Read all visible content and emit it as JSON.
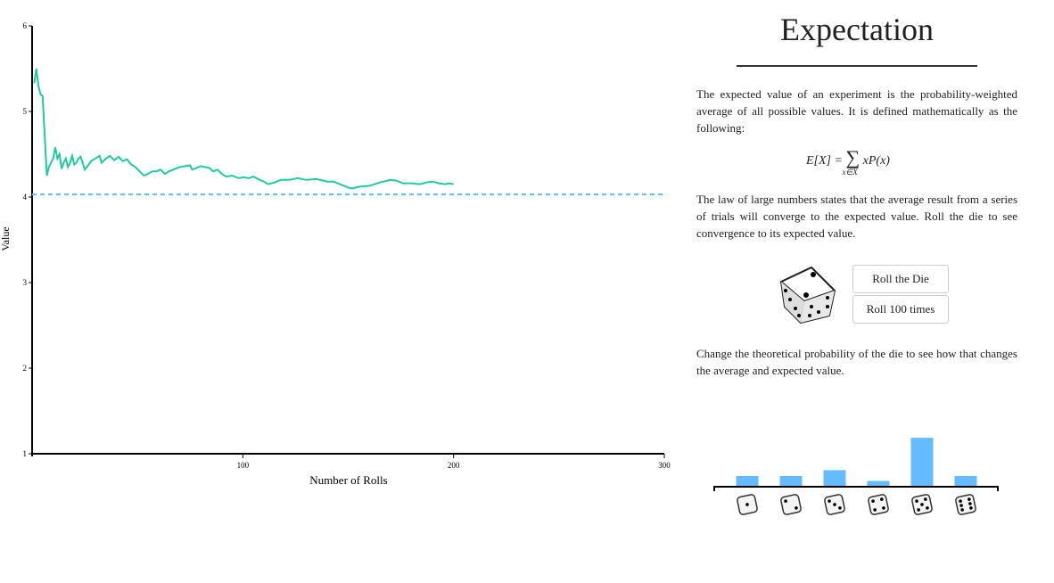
{
  "chart_data": [
    {
      "type": "line",
      "x_label": "Number of Rolls",
      "y_label": "Value",
      "xlim": [
        0,
        300
      ],
      "xticks": [
        100,
        200,
        300
      ],
      "ylim": [
        1,
        6
      ],
      "yticks": [
        1,
        2,
        3,
        4,
        5,
        6
      ],
      "reference_value": 4.03,
      "reference_color": "#5bc0f8",
      "series": [
        {
          "color": "#1ecb9e",
          "x": [
            1,
            2,
            3,
            4,
            5,
            6,
            7,
            8,
            9,
            10,
            11,
            12,
            13,
            14,
            15,
            16,
            17,
            18,
            19,
            20,
            21,
            22,
            23,
            24,
            25,
            26,
            28,
            30,
            32,
            33,
            35,
            37,
            39,
            41,
            43,
            45,
            47,
            49,
            51,
            53,
            55,
            57,
            59,
            61,
            63,
            65,
            70,
            75,
            76,
            80,
            84,
            86,
            88,
            90,
            92,
            95,
            98,
            100,
            103,
            105,
            108,
            110,
            112,
            115,
            118,
            122,
            126,
            130,
            135,
            140,
            143,
            146,
            150,
            152,
            155,
            160,
            165,
            170,
            173,
            176,
            180,
            184,
            187,
            190,
            193,
            196,
            198,
            200
          ],
          "values": [
            5.33,
            5.5,
            5.3,
            5.2,
            5.18,
            4.7,
            4.25,
            4.35,
            4.4,
            4.45,
            4.58,
            4.45,
            4.5,
            4.33,
            4.4,
            4.45,
            4.35,
            4.4,
            4.48,
            4.38,
            4.4,
            4.45,
            4.47,
            4.4,
            4.32,
            4.35,
            4.42,
            4.45,
            4.48,
            4.4,
            4.45,
            4.48,
            4.43,
            4.47,
            4.42,
            4.44,
            4.38,
            4.35,
            4.3,
            4.25,
            4.27,
            4.3,
            4.3,
            4.32,
            4.27,
            4.3,
            4.35,
            4.37,
            4.32,
            4.36,
            4.34,
            4.3,
            4.32,
            4.27,
            4.24,
            4.25,
            4.22,
            4.23,
            4.22,
            4.24,
            4.2,
            4.18,
            4.15,
            4.17,
            4.2,
            4.2,
            4.22,
            4.2,
            4.21,
            4.18,
            4.18,
            4.15,
            4.11,
            4.1,
            4.12,
            4.13,
            4.17,
            4.2,
            4.19,
            4.16,
            4.16,
            4.15,
            4.17,
            4.18,
            4.16,
            4.15,
            4.16,
            4.15
          ]
        }
      ]
    },
    {
      "type": "bar",
      "color": "#66bbff",
      "values": [
        0.1,
        0.1,
        0.16,
        0.05,
        0.49,
        0.1
      ]
    }
  ],
  "panel": {
    "title": "Expectation",
    "paragraph1": "The expected value of an experiment is the probability-weighted average of all possible values. It is defined mathematically as the following:",
    "formula_lhs": "E[X] =",
    "formula_sum": "∑",
    "formula_sub": "x∈X",
    "formula_rhs": "xP(x)",
    "paragraph2": "The law of large numbers states that the average result from a series of trials will converge to the expected value. Roll the die to see convergence to its expected value.",
    "button1": "Roll the Die",
    "button2": "Roll 100 times",
    "paragraph3": "Change the theoretical probability of the die to see how that changes the average and expected value."
  }
}
